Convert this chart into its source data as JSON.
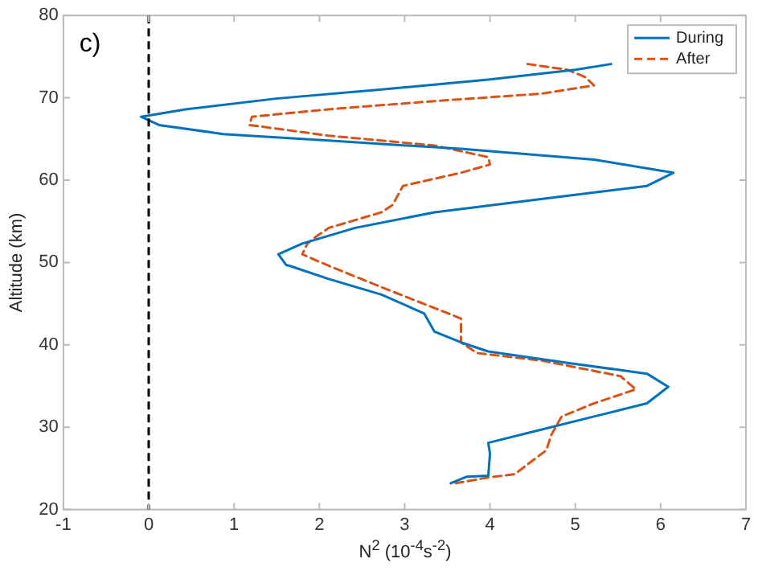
{
  "chart_data": {
    "type": "line",
    "xlabel": "N$^{2}$ (10$^{-4}$s$^{-2}$)",
    "ylabel": "Altitude (km)",
    "annotations": [
      "c)"
    ],
    "ref_lines": [
      {
        "axis": "x",
        "value": 0,
        "color": "#000000",
        "line_style": "dashed"
      }
    ],
    "xlim": [
      -1,
      7
    ],
    "xticks": [
      -1,
      0,
      1,
      2,
      3,
      4,
      5,
      6,
      7
    ],
    "ylim": [
      20,
      80
    ],
    "yticks": [
      20,
      30,
      40,
      50,
      60,
      70,
      80
    ],
    "grid": false,
    "legend": "top right",
    "marker": "none",
    "series": [
      {
        "name": "During",
        "color": "#0072bd",
        "line_style": "solid",
        "x": [
          5.42,
          5.0,
          3.98,
          2.73,
          1.49,
          0.43,
          -0.09,
          0.12,
          0.87,
          2.11,
          3.66,
          5.22,
          6.15,
          5.84,
          4.6,
          3.35,
          2.42,
          1.8,
          1.52,
          1.61,
          1.65,
          2.11,
          2.73,
          3.23,
          3.35,
          3.66,
          3.98,
          4.91,
          5.84,
          6.09,
          5.84,
          5.22,
          4.6,
          3.98,
          4.0,
          3.98,
          3.73,
          3.54
        ],
        "values": [
          74.1,
          73.4,
          72.2,
          71.0,
          69.9,
          68.6,
          67.7,
          66.7,
          65.6,
          64.8,
          63.8,
          62.5,
          60.9,
          59.3,
          57.7,
          56.1,
          54.2,
          52.3,
          51.0,
          49.7,
          49.6,
          48.0,
          46.1,
          43.8,
          41.6,
          40.3,
          39.2,
          37.8,
          36.5,
          34.9,
          32.9,
          31.3,
          29.7,
          28.1,
          26.8,
          24.1,
          24.0,
          23.2
        ]
      },
      {
        "name": "After",
        "color": "#d95319",
        "line_style": "dashed",
        "x": [
          4.44,
          4.91,
          5.12,
          5.22,
          4.6,
          3.35,
          2.11,
          1.21,
          1.18,
          2.11,
          3.35,
          3.98,
          4.0,
          3.66,
          2.98,
          2.86,
          2.73,
          2.11,
          1.93,
          1.86,
          1.8,
          2.11,
          2.73,
          3.66,
          3.66,
          3.85,
          4.6,
          5.53,
          5.71,
          5.22,
          4.84,
          4.72,
          4.66,
          4.29,
          3.98,
          3.6
        ],
        "values": [
          74.1,
          73.4,
          72.5,
          71.5,
          70.5,
          69.6,
          68.6,
          67.7,
          66.7,
          65.4,
          64.2,
          62.8,
          61.9,
          60.9,
          59.3,
          57.0,
          56.1,
          54.2,
          52.9,
          52.3,
          51.0,
          49.6,
          47.0,
          43.2,
          40.3,
          39.0,
          38.1,
          36.2,
          34.6,
          32.9,
          31.3,
          29.1,
          27.2,
          24.3,
          23.9,
          23.2
        ]
      }
    ]
  }
}
